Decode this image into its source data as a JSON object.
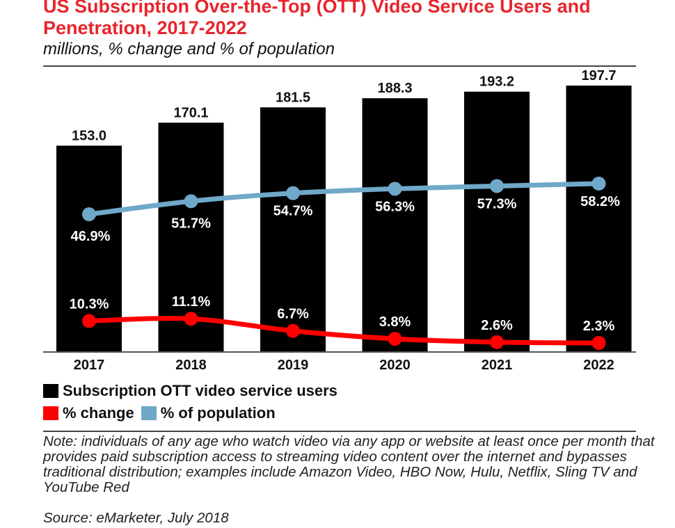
{
  "title": "US Subscription Over-the-Top (OTT) Video Service Users and Penetration, 2017-2022",
  "subtitle": "millions, % change and % of population",
  "legend": {
    "users": "Subscription OTT video service users",
    "change": "% change",
    "population": "% of population"
  },
  "note": "Note: individuals of any age who watch video via any app or website at least once per month that provides paid subscription access to streaming video content over the internet and bypasses traditional distribution; examples include Amazon Video, HBO Now, Hulu, Netflix, Sling TV and YouTube Red",
  "source": "Source: eMarketer, July 2018",
  "colors": {
    "title": "#e8242c",
    "bars": "#000000",
    "change_line": "#ff0000",
    "population_line": "#6fa8c8"
  },
  "chart_data": {
    "type": "bar",
    "categories": [
      "2017",
      "2018",
      "2019",
      "2020",
      "2021",
      "2022"
    ],
    "series": [
      {
        "name": "Subscription OTT video service users",
        "type": "bar",
        "values": [
          153.0,
          170.1,
          181.5,
          188.3,
          193.2,
          197.7
        ],
        "labels": [
          "153.0",
          "170.1",
          "181.5",
          "188.3",
          "193.2",
          "197.7"
        ]
      },
      {
        "name": "% change",
        "type": "line",
        "values": [
          10.3,
          11.1,
          6.7,
          3.8,
          2.6,
          2.3
        ],
        "labels": [
          "10.3%",
          "11.1%",
          "6.7%",
          "3.8%",
          "2.6%",
          "2.3%"
        ]
      },
      {
        "name": "% of population",
        "type": "line",
        "values": [
          46.9,
          51.7,
          54.7,
          56.3,
          57.3,
          58.2
        ],
        "labels": [
          "46.9%",
          "51.7%",
          "54.7%",
          "56.3%",
          "57.3%",
          "58.2%"
        ]
      }
    ],
    "grid": false,
    "legend_position": "bottom-left"
  }
}
